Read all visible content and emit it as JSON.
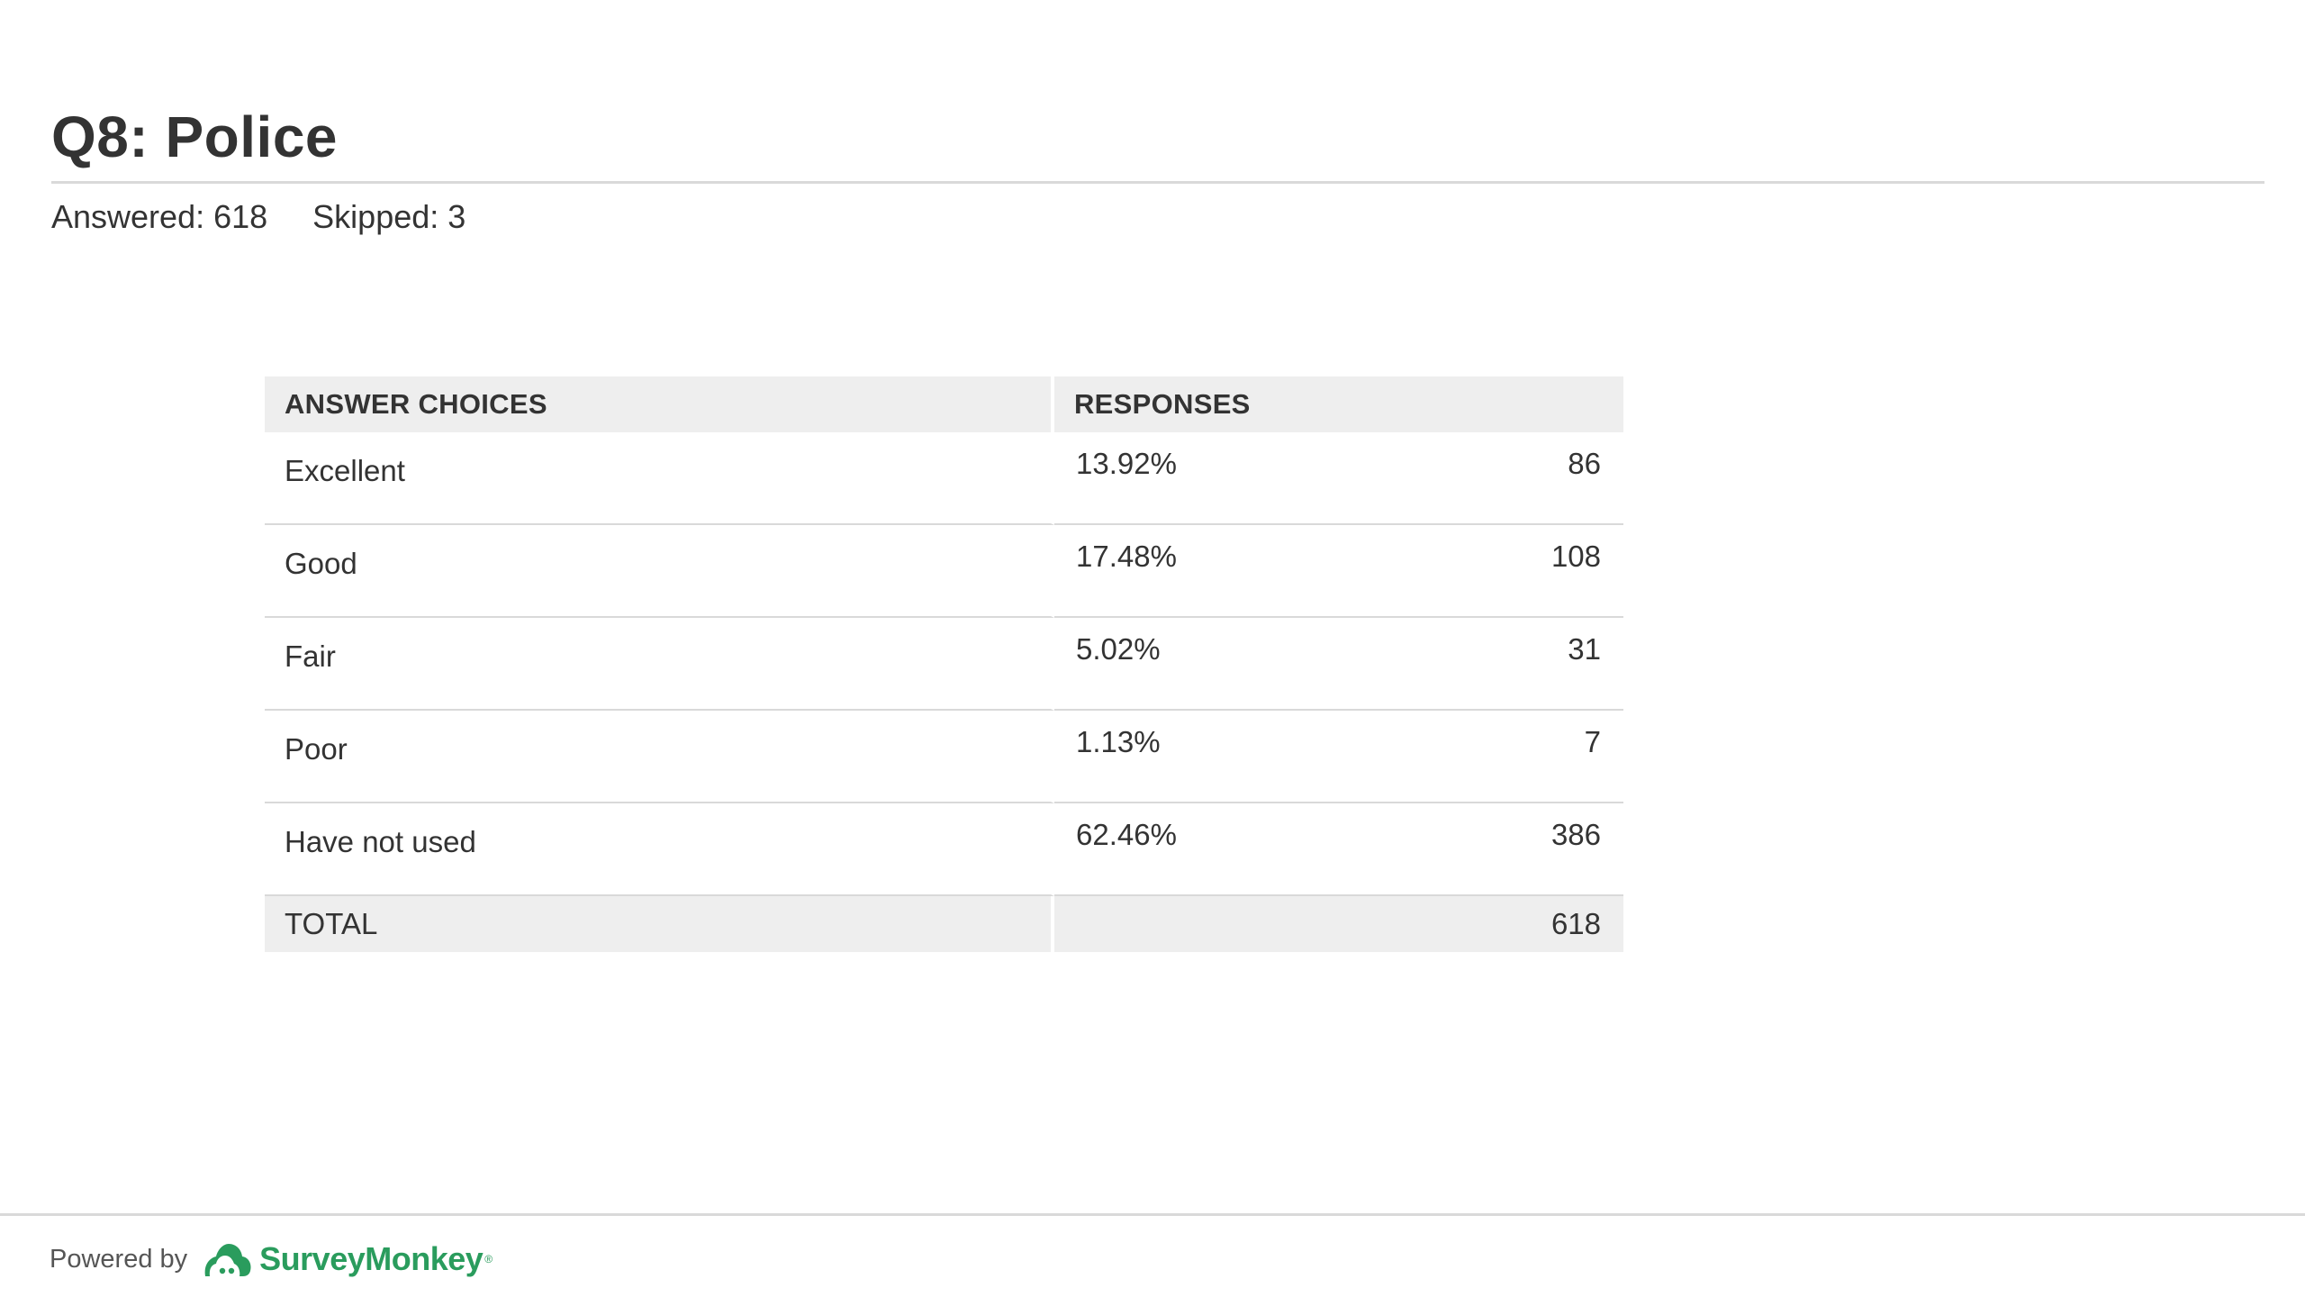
{
  "question": {
    "title": "Q8: Police",
    "answered_label": "Answered: 618",
    "skipped_label": "Skipped: 3"
  },
  "table": {
    "headers": {
      "choices": "ANSWER CHOICES",
      "responses": "RESPONSES"
    },
    "rows": [
      {
        "choice": "Excellent",
        "percent": "13.92%",
        "count": "86"
      },
      {
        "choice": "Good",
        "percent": "17.48%",
        "count": "108"
      },
      {
        "choice": "Fair",
        "percent": "5.02%",
        "count": "31"
      },
      {
        "choice": "Poor",
        "percent": "1.13%",
        "count": "7"
      },
      {
        "choice": "Have not used",
        "percent": "62.46%",
        "count": "386"
      }
    ],
    "total": {
      "label": "TOTAL",
      "count": "618"
    }
  },
  "footer": {
    "powered_by": "Powered by",
    "brand": "SurveyMonkey",
    "brand_mark": "®",
    "brand_icon": "surveymonkey-logo-icon",
    "brand_color": "#2a9c5d"
  }
}
